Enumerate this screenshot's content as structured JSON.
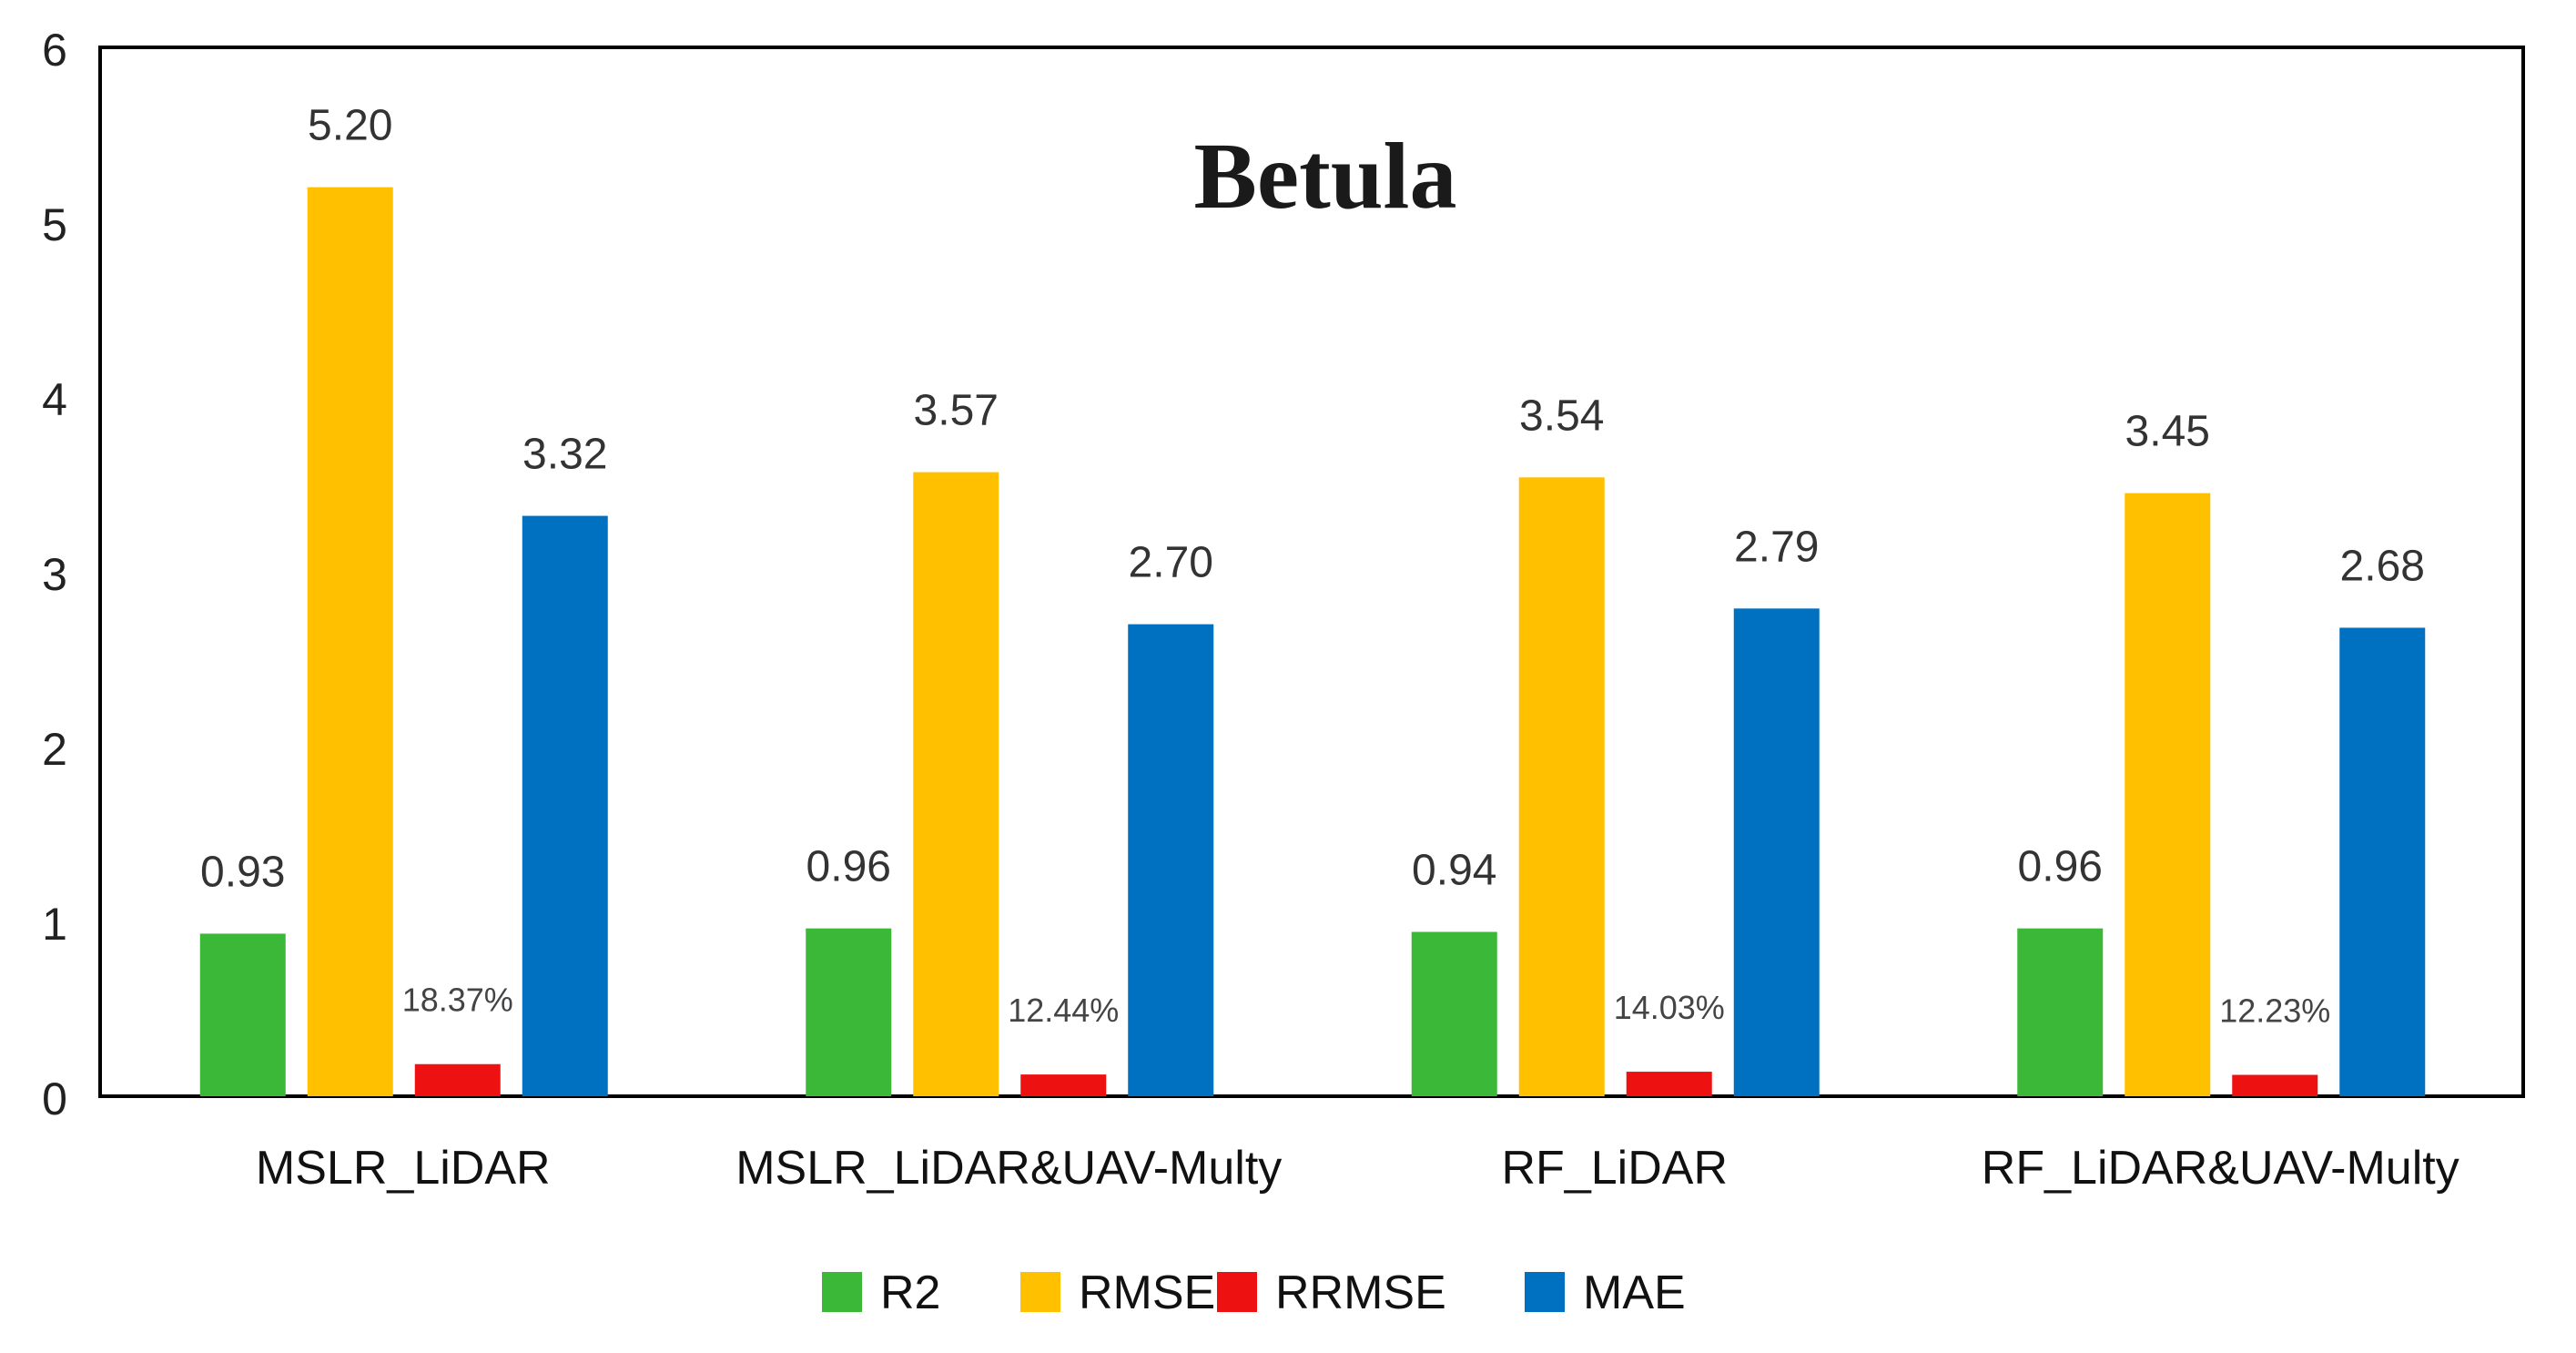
{
  "chart_data": {
    "type": "bar",
    "title": "Betula",
    "categories": [
      "MSLR_LiDAR",
      "MSLR_LiDAR&UAV-Multy",
      "RF_LiDAR",
      "RF_LiDAR&UAV-Multy"
    ],
    "ylim": [
      0,
      6
    ],
    "y_ticks": [
      "0",
      "1",
      "2",
      "3",
      "4",
      "5",
      "6"
    ],
    "grid": false,
    "legend_position": "bottom",
    "series": [
      {
        "name": "R2",
        "color": "#3cb838",
        "values": [
          0.93,
          0.96,
          0.94,
          0.96
        ],
        "labels": [
          "0.93",
          "0.96",
          "0.94",
          "0.96"
        ]
      },
      {
        "name": "RMSE",
        "color": "#ffc000",
        "values": [
          5.2,
          3.57,
          3.54,
          3.45
        ],
        "labels": [
          "5.20",
          "3.57",
          "3.54",
          "3.45"
        ]
      },
      {
        "name": "RRMSE",
        "color": "#ee1111",
        "values": [
          0.1837,
          0.1244,
          0.1403,
          0.1223
        ],
        "labels": [
          "18.37%",
          "12.44%",
          "14.03%",
          "12.23%"
        ]
      },
      {
        "name": "MAE",
        "color": "#0070c0",
        "values": [
          3.32,
          2.7,
          2.79,
          2.68
        ],
        "labels": [
          "3.32",
          "2.70",
          "2.79",
          "2.68"
        ]
      }
    ]
  }
}
